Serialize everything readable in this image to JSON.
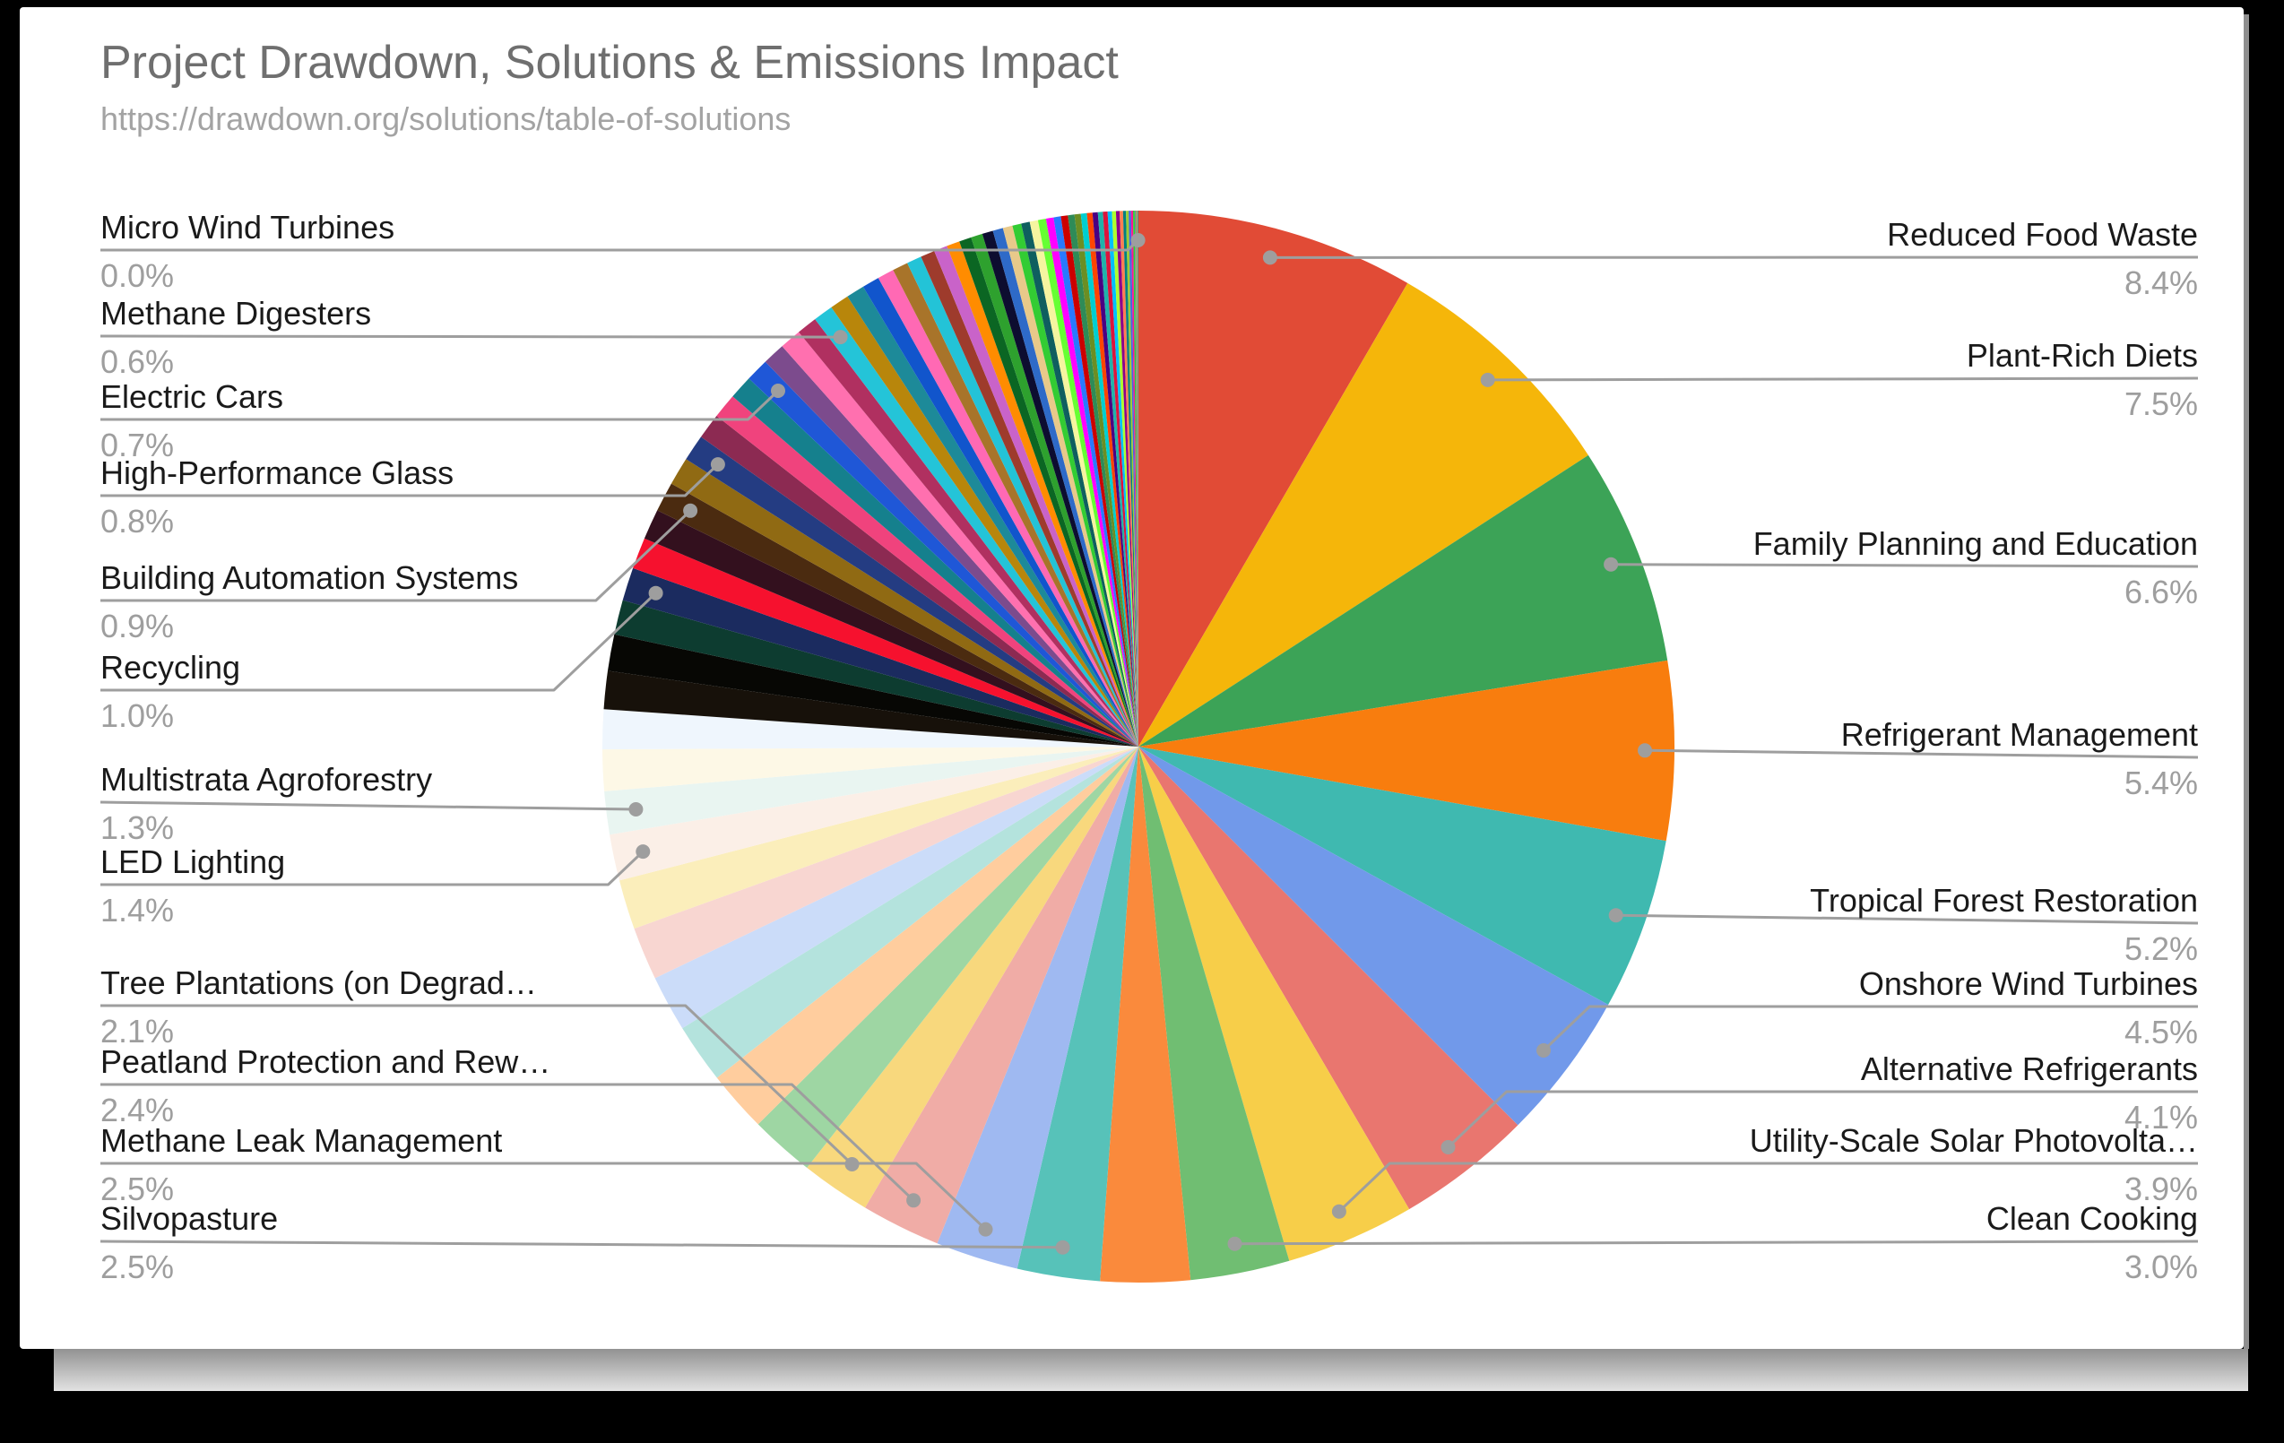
{
  "header": {
    "title": "Project Drawdown, Solutions & Emissions Impact",
    "url": "https://drawdown.org/solutions/table-of-solutions"
  },
  "chart_data": {
    "type": "pie",
    "title": "Project Drawdown, Solutions & Emissions Impact",
    "source_url": "https://drawdown.org/solutions/table-of-solutions",
    "start_angle": "12 o'clock, clockwise, slices sorted descending by share",
    "legend_position": "none (leader-line callouts on left and right)",
    "labeled_slices": [
      {
        "label": "Reduced Food Waste",
        "pct": 8.4,
        "pct_text": "8.4%",
        "side": "right"
      },
      {
        "label": "Plant-Rich Diets",
        "pct": 7.5,
        "pct_text": "7.5%",
        "side": "right"
      },
      {
        "label": "Family Planning and Education",
        "pct": 6.6,
        "pct_text": "6.6%",
        "side": "right"
      },
      {
        "label": "Refrigerant Management",
        "pct": 5.4,
        "pct_text": "5.4%",
        "side": "right"
      },
      {
        "label": "Tropical Forest Restoration",
        "pct": 5.2,
        "pct_text": "5.2%",
        "side": "right"
      },
      {
        "label": "Onshore Wind Turbines",
        "pct": 4.5,
        "pct_text": "4.5%",
        "side": "right"
      },
      {
        "label": "Alternative Refrigerants",
        "pct": 4.1,
        "pct_text": "4.1%",
        "side": "right"
      },
      {
        "label": "Utility-Scale Solar Photovolta…",
        "pct": 3.9,
        "pct_text": "3.9%",
        "side": "right"
      },
      {
        "label": "Clean Cooking",
        "pct": 3.0,
        "pct_text": "3.0%",
        "side": "right"
      },
      {
        "label": "Micro Wind Turbines",
        "pct": 0.0,
        "pct_text": "0.0%",
        "side": "left"
      },
      {
        "label": "Methane Digesters",
        "pct": 0.6,
        "pct_text": "0.6%",
        "side": "left"
      },
      {
        "label": "Electric Cars",
        "pct": 0.7,
        "pct_text": "0.7%",
        "side": "left"
      },
      {
        "label": "High-Performance Glass",
        "pct": 0.8,
        "pct_text": "0.8%",
        "side": "left"
      },
      {
        "label": "Building Automation Systems",
        "pct": 0.9,
        "pct_text": "0.9%",
        "side": "left"
      },
      {
        "label": "Recycling",
        "pct": 1.0,
        "pct_text": "1.0%",
        "side": "left"
      },
      {
        "label": "Multistrata Agroforestry",
        "pct": 1.3,
        "pct_text": "1.3%",
        "side": "left"
      },
      {
        "label": "LED Lighting",
        "pct": 1.4,
        "pct_text": "1.4%",
        "side": "left"
      },
      {
        "label": "Tree Plantations (on Degrad…",
        "pct": 2.1,
        "pct_text": "2.1%",
        "side": "left"
      },
      {
        "label": "Peatland Protection and Rew…",
        "pct": 2.4,
        "pct_text": "2.4%",
        "side": "left"
      },
      {
        "label": "Methane Leak Management",
        "pct": 2.5,
        "pct_text": "2.5%",
        "side": "left"
      },
      {
        "label": "Silvopasture",
        "pct": 2.5,
        "pct_text": "2.5%",
        "side": "left"
      }
    ],
    "segments": [
      {
        "label": "Reduced Food Waste",
        "p": 8.4,
        "c": "#E14B36"
      },
      {
        "label": "Plant-Rich Diets",
        "p": 7.5,
        "c": "#F5B60A"
      },
      {
        "label": "Family Planning and Education",
        "p": 6.6,
        "c": "#3CA357"
      },
      {
        "label": "Refrigerant Management",
        "p": 5.4,
        "c": "#F87D0E"
      },
      {
        "label": "Tropical Forest Restoration",
        "p": 5.2,
        "c": "#3FB9B0"
      },
      {
        "label": "Onshore Wind Turbines",
        "p": 4.5,
        "c": "#7199EA"
      },
      {
        "label": "Alternative Refrigerants",
        "p": 4.1,
        "c": "#E9766F"
      },
      {
        "label": "Utility-Scale Solar Photovolta…",
        "p": 3.9,
        "c": "#F7CE49"
      },
      {
        "label": "Clean Cooking",
        "p": 3.0,
        "c": "#70BE72"
      },
      {
        "p": 2.7,
        "c": "#FA8A3C"
      },
      {
        "label": "Silvopasture",
        "p": 2.5,
        "c": "#57C2B9"
      },
      {
        "label": "Methane Leak Management",
        "p": 2.5,
        "c": "#9FB9F1"
      },
      {
        "label": "Peatland Protection and Rew…",
        "p": 2.4,
        "c": "#F0ACA6"
      },
      {
        "label": "Tree Plantations (on Degrad…",
        "p": 2.1,
        "c": "#F8D87D"
      },
      {
        "p": 1.95,
        "c": "#9ED6A3"
      },
      {
        "p": 1.85,
        "c": "#FFCD9E"
      },
      {
        "p": 1.8,
        "c": "#B4E3DD"
      },
      {
        "p": 1.7,
        "c": "#CBDCF9"
      },
      {
        "p": 1.6,
        "c": "#F8D6D1"
      },
      {
        "p": 1.5,
        "c": "#FBEEBB"
      },
      {
        "label": "LED Lighting",
        "p": 1.4,
        "c": "#FBEFE7"
      },
      {
        "label": "Multistrata Agroforestry",
        "p": 1.3,
        "c": "#E9F5F1"
      },
      {
        "p": 1.25,
        "c": "#FDF8E6"
      },
      {
        "p": 1.2,
        "c": "#EFF6FD"
      },
      {
        "p": 1.15,
        "c": "#17110A"
      },
      {
        "p": 1.1,
        "c": "#070704"
      },
      {
        "p": 1.05,
        "c": "#0D3C30"
      },
      {
        "label": "Recycling",
        "p": 1.0,
        "c": "#1B2B5F"
      },
      {
        "p": 0.95,
        "c": "#F6112E"
      },
      {
        "p": 0.92,
        "c": "#33101E"
      },
      {
        "label": "Building Automation Systems",
        "p": 0.9,
        "c": "#4B2B10"
      },
      {
        "p": 0.85,
        "c": "#906A13"
      },
      {
        "label": "High-Performance Glass",
        "p": 0.8,
        "c": "#243C82"
      },
      {
        "p": 0.78,
        "c": "#8C2A52"
      },
      {
        "p": 0.75,
        "c": "#F0437D"
      },
      {
        "p": 0.72,
        "c": "#15808D"
      },
      {
        "label": "Electric Cars",
        "p": 0.7,
        "c": "#1F57D7"
      },
      {
        "p": 0.68,
        "c": "#7C4B8D"
      },
      {
        "p": 0.65,
        "c": "#FF70AF"
      },
      {
        "p": 0.62,
        "c": "#B03060"
      },
      {
        "label": "Methane Digesters",
        "p": 0.6,
        "c": "#24C4D8"
      },
      {
        "p": 0.58,
        "c": "#B8860B"
      },
      {
        "p": 0.55,
        "c": "#1D8A99"
      },
      {
        "p": 0.52,
        "c": "#1155CC"
      },
      {
        "p": 0.5,
        "c": "#FF69B4"
      },
      {
        "p": 0.47,
        "c": "#A8742A"
      },
      {
        "p": 0.45,
        "c": "#23C3D7"
      },
      {
        "p": 0.43,
        "c": "#9E3B2C"
      },
      {
        "p": 0.41,
        "c": "#C963C9"
      },
      {
        "p": 0.39,
        "c": "#FF8C00"
      },
      {
        "p": 0.37,
        "c": "#0B6623"
      },
      {
        "p": 0.35,
        "c": "#2EA12E"
      },
      {
        "p": 0.33,
        "c": "#0D0D30"
      },
      {
        "p": 0.31,
        "c": "#2E6AC8"
      },
      {
        "p": 0.29,
        "c": "#E8C98A"
      },
      {
        "p": 0.27,
        "c": "#33CC33"
      },
      {
        "p": 0.26,
        "c": "#0F5F5F"
      },
      {
        "p": 0.25,
        "c": "#F5F5A0"
      },
      {
        "p": 0.24,
        "c": "#66FF33"
      },
      {
        "p": 0.23,
        "c": "#FF00FF"
      },
      {
        "p": 0.22,
        "c": "#2979FF"
      },
      {
        "p": 0.21,
        "c": "#CC0000"
      },
      {
        "p": 0.2,
        "c": "#2E8B57"
      },
      {
        "p": 0.19,
        "c": "#6B8E23"
      },
      {
        "p": 0.18,
        "c": "#00CED1"
      },
      {
        "p": 0.17,
        "c": "#FF4500"
      },
      {
        "p": 0.16,
        "c": "#4B0082"
      },
      {
        "p": 0.15,
        "c": "#20B2AA"
      },
      {
        "p": 0.14,
        "c": "#DC143C"
      },
      {
        "p": 0.13,
        "c": "#00BFFF"
      },
      {
        "p": 0.12,
        "c": "#ADFF2F"
      },
      {
        "p": 0.11,
        "c": "#8B008B"
      },
      {
        "p": 0.1,
        "c": "#FF7F50"
      },
      {
        "p": 0.09,
        "c": "#008080"
      },
      {
        "p": 0.08,
        "c": "#9ACD32"
      },
      {
        "p": 0.07,
        "c": "#4169E1"
      },
      {
        "p": 0.06,
        "c": "#FF1493"
      },
      {
        "p": 0.05,
        "c": "#32CD32"
      },
      {
        "p": 0.04,
        "c": "#5F9EA0"
      },
      {
        "p": 0.03,
        "c": "#D2691E"
      },
      {
        "p": 0.02,
        "c": "#7FFFD4"
      },
      {
        "label": "Micro Wind Turbines",
        "p": 0.02,
        "c": "#2F4F4F"
      }
    ]
  },
  "styles": {
    "title_color": "#6F6F6F",
    "url_color": "#A3A3A3",
    "label_color": "#1A1A1A",
    "value_color": "#9E9E9E",
    "leader_color": "#9E9E9E",
    "card_background": "#FFFFFF",
    "frame_background": "#000000"
  }
}
